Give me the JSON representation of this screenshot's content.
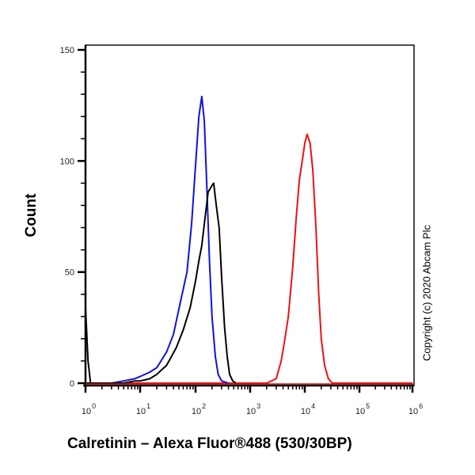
{
  "chart_data": {
    "type": "line",
    "title": "",
    "xlabel": "Calretinin – Alexa Fluor®488 (530/30BP)",
    "ylabel": "Count",
    "xscale": "log",
    "x_ticks": [
      "0",
      "10^1",
      "10^2",
      "10^3",
      "10^4",
      "10^5",
      "10^6"
    ],
    "x_tick_labels_display": [
      {
        "base": "10",
        "exp": "0"
      },
      {
        "base": "10",
        "exp": "1"
      },
      {
        "base": "10",
        "exp": "2"
      },
      {
        "base": "10",
        "exp": "3"
      },
      {
        "base": "10",
        "exp": "4"
      },
      {
        "base": "10",
        "exp": "5"
      },
      {
        "base": "10",
        "exp": "6"
      }
    ],
    "y_ticks": [
      0,
      50,
      100,
      150
    ],
    "ylim": [
      0,
      150
    ],
    "xlim": [
      "10^0",
      "10^6"
    ],
    "grid": false,
    "legend": null,
    "annotation": "Copyright (c) 2020 Abcam Plc",
    "series": [
      {
        "name": "blue",
        "color": "#1010e0",
        "peak_x": 130,
        "peak_count": 129,
        "points": [
          [
            1,
            0
          ],
          [
            3,
            0
          ],
          [
            5,
            1
          ],
          [
            8,
            2
          ],
          [
            10,
            3
          ],
          [
            15,
            5
          ],
          [
            20,
            7
          ],
          [
            30,
            14
          ],
          [
            40,
            22
          ],
          [
            55,
            38
          ],
          [
            70,
            50
          ],
          [
            85,
            72
          ],
          [
            100,
            98
          ],
          [
            115,
            120
          ],
          [
            130,
            129
          ],
          [
            145,
            118
          ],
          [
            160,
            90
          ],
          [
            180,
            55
          ],
          [
            200,
            30
          ],
          [
            230,
            12
          ],
          [
            260,
            4
          ],
          [
            300,
            1
          ],
          [
            400,
            0
          ]
        ]
      },
      {
        "name": "black",
        "color": "#000000",
        "peak_x": 215,
        "peak_count": 90,
        "points": [
          [
            1,
            0
          ],
          [
            5,
            0
          ],
          [
            8,
            1
          ],
          [
            10,
            1
          ],
          [
            15,
            2
          ],
          [
            20,
            4
          ],
          [
            30,
            8
          ],
          [
            45,
            16
          ],
          [
            60,
            24
          ],
          [
            80,
            34
          ],
          [
            100,
            46
          ],
          [
            115,
            55
          ],
          [
            130,
            62
          ],
          [
            150,
            75
          ],
          [
            170,
            86
          ],
          [
            200,
            89
          ],
          [
            215,
            90
          ],
          [
            240,
            80
          ],
          [
            270,
            70
          ],
          [
            300,
            48
          ],
          [
            340,
            25
          ],
          [
            380,
            12
          ],
          [
            420,
            4
          ],
          [
            480,
            1
          ],
          [
            550,
            0
          ]
        ]
      },
      {
        "name": "red",
        "color": "#ee1111",
        "peak_x": 11000,
        "peak_count": 112,
        "points": [
          [
            1,
            0
          ],
          [
            2000,
            0
          ],
          [
            3000,
            2
          ],
          [
            3700,
            10
          ],
          [
            4200,
            18
          ],
          [
            5000,
            30
          ],
          [
            6000,
            52
          ],
          [
            7000,
            75
          ],
          [
            8000,
            92
          ],
          [
            9000,
            100
          ],
          [
            10000,
            108
          ],
          [
            11000,
            112
          ],
          [
            12500,
            108
          ],
          [
            14000,
            96
          ],
          [
            16000,
            70
          ],
          [
            18000,
            40
          ],
          [
            20000,
            20
          ],
          [
            23000,
            8
          ],
          [
            27000,
            2
          ],
          [
            32000,
            0
          ],
          [
            1000000,
            0
          ]
        ]
      },
      {
        "name": "low-end spike (all)",
        "color": "#000000",
        "note": "spike at left axis edge",
        "points": [
          [
            1,
            34
          ],
          [
            1.2,
            10
          ],
          [
            1.4,
            0
          ]
        ]
      }
    ]
  },
  "labels": {
    "ylabel": "Count",
    "xlabel": "Calretinin – Alexa Fluor®488 (530/30BP)",
    "copyright": "Copyright (c) 2020 Abcam Plc",
    "y_ticks": [
      "0",
      "50",
      "100",
      "150"
    ]
  }
}
